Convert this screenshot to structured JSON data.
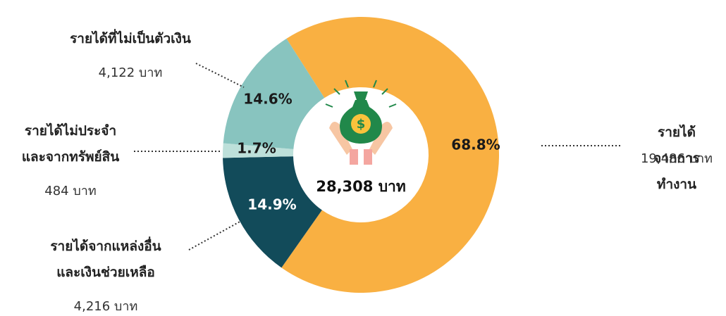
{
  "chart_data": {
    "type": "donut",
    "categories": [
      "รายได้จากการทำงาน",
      "รายได้จากแหล่งอื่น\nและเงินช่วยเหลือ",
      "รายได้ไม่ประจำ\nและจากทรัพย์สิน",
      "รายได้ที่ไม่เป็นตัวเงิน"
    ],
    "values": [
      68.8,
      14.9,
      1.7,
      14.6
    ],
    "value_labels": [
      "68.8%",
      "14.9%",
      "1.7%",
      "14.6%"
    ],
    "amount_labels": [
      "19,486 บาท",
      "4,216 บาท",
      "484 บาท",
      "4,122 บาท"
    ],
    "colors": [
      "#f9b042",
      "#124b5a",
      "#bde0da",
      "#88c4bf"
    ],
    "label_colors": [
      "#1a1a1a",
      "#ffffff",
      "#1a1a1a",
      "#1a1a1a"
    ],
    "total_label": "28,308 บาท"
  }
}
